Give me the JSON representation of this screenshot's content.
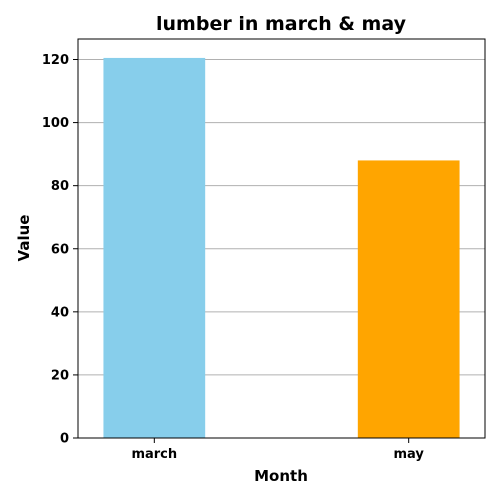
{
  "chart_data": {
    "type": "bar",
    "title": "lumber in march & may",
    "xlabel": "Month",
    "ylabel": "Value",
    "categories": [
      "march",
      "may"
    ],
    "values": [
      120.5,
      88
    ],
    "colors": [
      "#87CEEB",
      "#FFA500"
    ],
    "ylim": [
      0,
      126.5
    ],
    "yticks": [
      0,
      20,
      40,
      60,
      80,
      100,
      120
    ],
    "grid": "y"
  }
}
